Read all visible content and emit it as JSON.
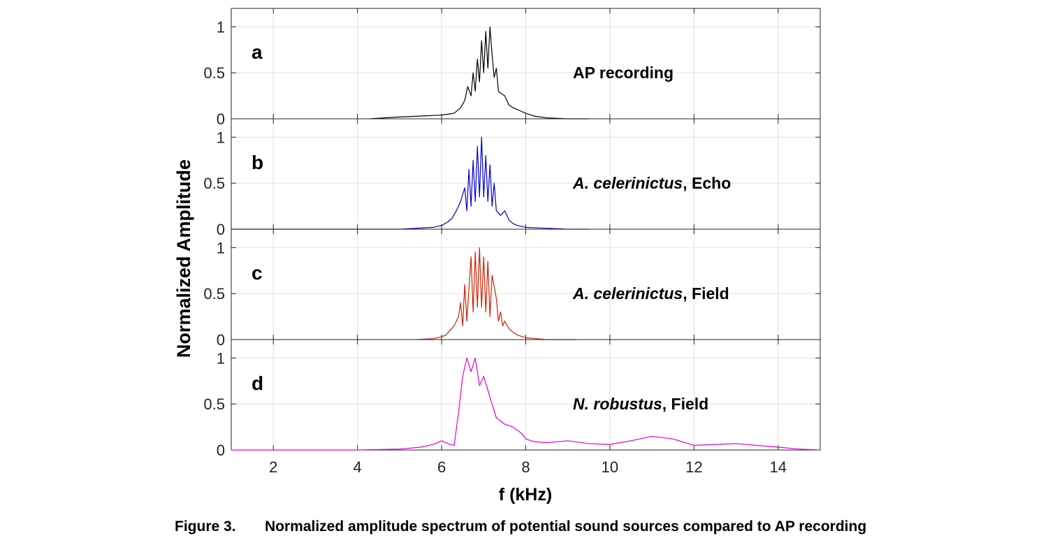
{
  "figure": {
    "xlabel": "f (kHz)",
    "ylabel": "Normalized Amplitude",
    "caption_label": "Figure 3.",
    "caption_text": "Normalized amplitude spectrum of potential sound sources compared to AP recording"
  },
  "chart_data": [
    {
      "type": "line",
      "panel": "a",
      "annotation": "AP recording",
      "color": "#000000",
      "xlim": [
        1,
        15
      ],
      "ylim": [
        0,
        1.2
      ],
      "xticks": [
        2,
        4,
        6,
        8,
        10,
        12,
        14
      ],
      "yticks": [
        0,
        0.5,
        1
      ],
      "grid": true,
      "x": [
        4.3,
        5.0,
        5.5,
        6.0,
        6.3,
        6.45,
        6.55,
        6.62,
        6.7,
        6.75,
        6.8,
        6.85,
        6.9,
        6.95,
        7.0,
        7.05,
        7.1,
        7.15,
        7.2,
        7.25,
        7.3,
        7.35,
        7.4,
        7.5,
        7.6,
        7.7,
        7.8,
        7.9,
        8.0,
        8.2,
        8.5,
        9.0,
        9.5
      ],
      "y": [
        0.0,
        0.02,
        0.03,
        0.04,
        0.06,
        0.12,
        0.2,
        0.35,
        0.25,
        0.5,
        0.3,
        0.65,
        0.4,
        0.85,
        0.5,
        0.95,
        0.55,
        1.0,
        0.7,
        0.45,
        0.55,
        0.3,
        0.28,
        0.25,
        0.15,
        0.12,
        0.1,
        0.08,
        0.06,
        0.03,
        0.01,
        0.0,
        0.0
      ]
    },
    {
      "type": "line",
      "panel": "b",
      "annotation": "A. celerinictus, Echo",
      "annotation_italic": "A. celerinictus",
      "annotation_rest": ", Echo",
      "color": "#0000cc",
      "xlim": [
        1,
        15
      ],
      "ylim": [
        0,
        1.2
      ],
      "xticks": [
        2,
        4,
        6,
        8,
        10,
        12,
        14
      ],
      "yticks": [
        0,
        0.5,
        1
      ],
      "grid": true,
      "x": [
        1.0,
        5.0,
        5.8,
        6.0,
        6.15,
        6.25,
        6.35,
        6.45,
        6.55,
        6.6,
        6.65,
        6.7,
        6.75,
        6.8,
        6.85,
        6.9,
        6.95,
        7.0,
        7.05,
        7.1,
        7.15,
        7.2,
        7.25,
        7.3,
        7.4,
        7.5,
        7.6,
        7.7,
        7.8,
        8.0,
        8.5,
        9.0,
        9.5
      ],
      "y": [
        0.0,
        0.0,
        0.02,
        0.04,
        0.08,
        0.12,
        0.2,
        0.3,
        0.45,
        0.2,
        0.65,
        0.25,
        0.75,
        0.3,
        0.9,
        0.35,
        1.0,
        0.35,
        0.8,
        0.3,
        0.7,
        0.25,
        0.5,
        0.2,
        0.15,
        0.2,
        0.1,
        0.06,
        0.04,
        0.02,
        0.01,
        0.0,
        0.0
      ]
    },
    {
      "type": "line",
      "panel": "c",
      "annotation": "A. celerinictus, Field",
      "annotation_italic": "A. celerinictus",
      "annotation_rest": ", Field",
      "color": "#cc2200",
      "xlim": [
        1,
        15
      ],
      "ylim": [
        0,
        1.2
      ],
      "xticks": [
        2,
        4,
        6,
        8,
        10,
        12,
        14
      ],
      "yticks": [
        0,
        0.5,
        1
      ],
      "grid": true,
      "x": [
        5.4,
        5.8,
        6.0,
        6.1,
        6.2,
        6.3,
        6.4,
        6.45,
        6.5,
        6.55,
        6.6,
        6.7,
        6.75,
        6.8,
        6.85,
        6.9,
        6.95,
        7.0,
        7.05,
        7.1,
        7.15,
        7.2,
        7.3,
        7.35,
        7.4,
        7.45,
        7.5,
        7.6,
        7.7,
        7.8,
        8.0,
        8.5,
        9.2
      ],
      "y": [
        0.0,
        0.01,
        0.03,
        0.05,
        0.1,
        0.15,
        0.25,
        0.4,
        0.15,
        0.6,
        0.2,
        0.9,
        0.3,
        0.95,
        0.35,
        1.0,
        0.35,
        0.9,
        0.3,
        0.85,
        0.25,
        0.7,
        0.45,
        0.2,
        0.3,
        0.15,
        0.2,
        0.12,
        0.08,
        0.05,
        0.02,
        0.0,
        0.0
      ]
    },
    {
      "type": "line",
      "panel": "d",
      "annotation": "N. robustus, Field",
      "annotation_italic": "N. robustus",
      "annotation_rest": ", Field",
      "color": "#dd00dd",
      "xlim": [
        1,
        15
      ],
      "ylim": [
        0,
        1.2
      ],
      "xticks": [
        2,
        4,
        6,
        8,
        10,
        12,
        14
      ],
      "yticks": [
        0,
        0.5,
        1
      ],
      "grid": true,
      "x": [
        1.0,
        4.0,
        5.0,
        5.5,
        5.8,
        6.0,
        6.1,
        6.2,
        6.3,
        6.4,
        6.5,
        6.6,
        6.7,
        6.8,
        6.9,
        7.0,
        7.1,
        7.2,
        7.3,
        7.5,
        7.7,
        7.9,
        8.0,
        8.2,
        8.5,
        9.0,
        9.5,
        10.0,
        10.5,
        11.0,
        11.5,
        12.0,
        12.5,
        13.0,
        13.5,
        14.0,
        14.5,
        15.0
      ],
      "y": [
        0.0,
        0.0,
        0.01,
        0.03,
        0.06,
        0.1,
        0.08,
        0.06,
        0.05,
        0.4,
        0.8,
        1.0,
        0.85,
        1.0,
        0.7,
        0.8,
        0.65,
        0.5,
        0.35,
        0.28,
        0.25,
        0.18,
        0.12,
        0.09,
        0.08,
        0.1,
        0.07,
        0.06,
        0.1,
        0.15,
        0.12,
        0.05,
        0.06,
        0.07,
        0.05,
        0.03,
        0.01,
        0.0
      ]
    }
  ]
}
